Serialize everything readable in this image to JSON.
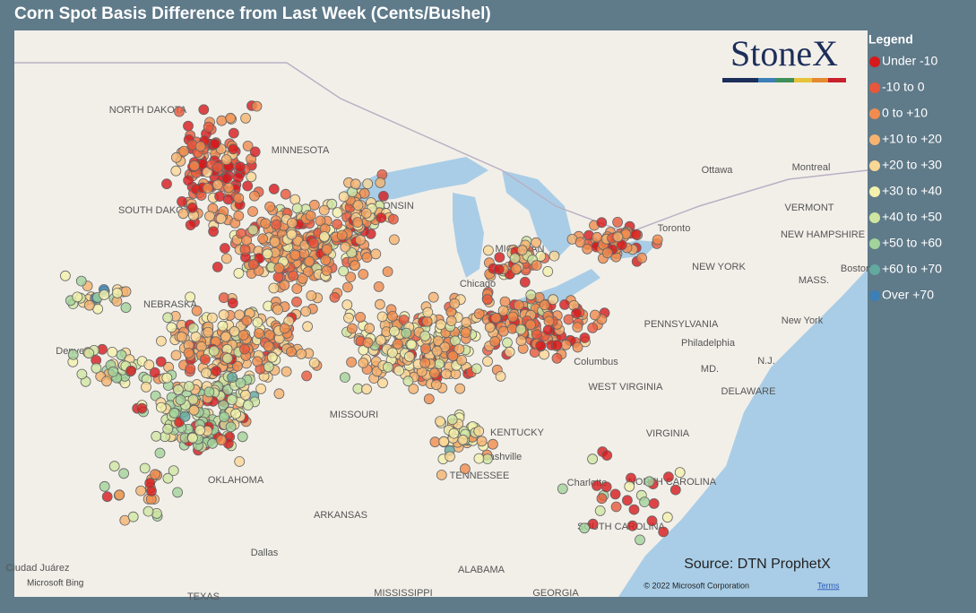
{
  "title": "Corn Spot Basis Difference from Last Week (Cents/Bushel)",
  "logo": "StoneX",
  "legend": {
    "title": "Legend",
    "items": [
      {
        "label": "Under -10",
        "color": "#d7191c"
      },
      {
        "label": "-10 to 0",
        "color": "#e8573b"
      },
      {
        "label": "0 to +10",
        "color": "#f08c4e"
      },
      {
        "label": "+10 to +20",
        "color": "#f5b36f"
      },
      {
        "label": "+20 to +30",
        "color": "#fad795"
      },
      {
        "label": "+30 to +40",
        "color": "#f3f1ad"
      },
      {
        "label": "+40 to +50",
        "color": "#cfe6a2"
      },
      {
        "label": "+50 to +60",
        "color": "#a2d39b"
      },
      {
        "label": "+60 to +70",
        "color": "#62a9a0"
      },
      {
        "label": "Over +70",
        "color": "#3b7fb6"
      }
    ]
  },
  "source": "Source: DTN ProphetX",
  "attribution": {
    "provider": "Microsoft Bing",
    "copyright": "© 2022 Microsoft Corporation",
    "terms": "Terms"
  },
  "places": [
    "NORTH DAKOTA",
    "MINNESOTA",
    "SOUTH DAKOTA",
    "NEBRASKA",
    "WISCONSIN",
    "MICHIGAN",
    "Chicago",
    "Ottawa",
    "Montreal",
    "VERMONT",
    "NEW HAMPSHIRE",
    "NEW YORK",
    "MASS.",
    "Boston",
    "New York",
    "PENNSYLVANIA",
    "Philadelphia",
    "Denver",
    "Columbus",
    "WEST VIRGINIA",
    "MD.",
    "N.J.",
    "DELAWARE",
    "MISSOURI",
    "KENTUCKY",
    "VIRGINIA",
    "Nashville",
    "TENNESSEE",
    "OKLAHOMA",
    "NORTH CAROLINA",
    "Charlotte",
    "ARKANSAS",
    "SOUTH CAROLINA",
    "Dallas",
    "ALABAMA",
    "GEORGIA",
    "TEXAS",
    "MISSISSIPPI",
    "Ciudad Juárez",
    "Toronto"
  ]
}
